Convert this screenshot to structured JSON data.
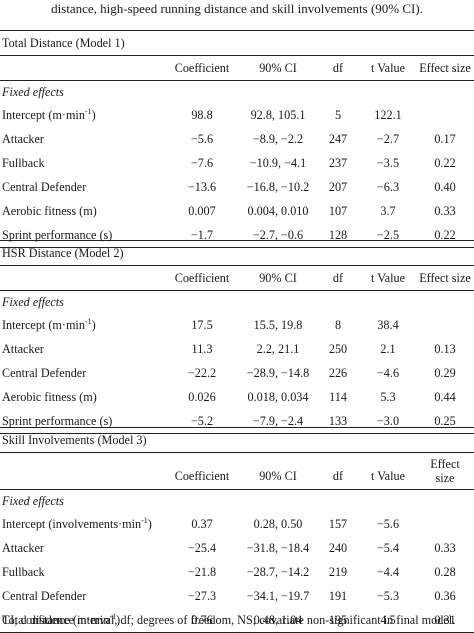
{
  "caption_tail": "distance, high-speed running distance and skill involvements (90% CI).",
  "headers": {
    "coefficient": "Coefficient",
    "ci": "90% CI",
    "df": "df",
    "t": "t Value",
    "effect_size": "Effect size",
    "effect_line1": "Effect",
    "effect_line2": "size"
  },
  "fixed_effects_label": "Fixed effects",
  "models": [
    {
      "title": "Total Distance (Model 1)",
      "rows": [
        {
          "label": "Intercept (m·min",
          "sup": "-1",
          "label_end": ")",
          "coef": "98.8",
          "ci": "92.8, 105.1",
          "df": "5",
          "t": "122.1",
          "es": ""
        },
        {
          "label": "Attacker",
          "coef": "−5.6",
          "ci": "−8.9, −2.2",
          "df": "247",
          "t": "−2.7",
          "es": "0.17"
        },
        {
          "label": "Fullback",
          "coef": "−7.6",
          "ci": "−10.9, −4.1",
          "df": "237",
          "t": "−3.5",
          "es": "0.22"
        },
        {
          "label": "Central Defender",
          "coef": "−13.6",
          "ci": "−16.8, −10.2",
          "df": "207",
          "t": "−6.3",
          "es": "0.40"
        },
        {
          "label": "Aerobic fitness (m)",
          "coef": "0.007",
          "ci": "0.004, 0.010",
          "df": "107",
          "t": "3.7",
          "es": "0.33"
        },
        {
          "label": "Sprint performance (s)",
          "coef": "−1.7",
          "ci": "−2.7, −0.6",
          "df": "128",
          "t": "−2.5",
          "es": "0.22"
        }
      ]
    },
    {
      "title": "HSR Distance (Model 2)",
      "rows": [
        {
          "label": "Intercept (m·min",
          "sup": "-1",
          "label_end": ")",
          "coef": "17.5",
          "ci": "15.5, 19.8",
          "df": "8",
          "t": "38.4",
          "es": ""
        },
        {
          "label": "Attacker",
          "coef": "11.3",
          "ci": "2.2, 21.1",
          "df": "250",
          "t": "2.1",
          "es": "0.13"
        },
        {
          "label": "Central Defender",
          "coef": "−22.2",
          "ci": "−28.9, −14.8",
          "df": "226",
          "t": "−4.6",
          "es": "0.29"
        },
        {
          "label": "Aerobic fitness (m)",
          "coef": "0.026",
          "ci": "0.018, 0.034",
          "df": "114",
          "t": "5.3",
          "es": "0.44"
        },
        {
          "label": "Sprint performance (s)",
          "coef": "−5.2",
          "ci": "−7.9, −2.4",
          "df": "133",
          "t": "−3.0",
          "es": "0.25"
        }
      ]
    },
    {
      "title": "Skill Involvements (Model 3)",
      "rows": [
        {
          "label": "Intercept (involvements·min",
          "sup": "-1",
          "label_end": ")",
          "coef": "0.37",
          "ci": "0.28, 0.50",
          "df": "157",
          "t": "−5.6",
          "es": ""
        },
        {
          "label": "Attacker",
          "coef": "−25.4",
          "ci": "−31.8, −18.4",
          "df": "240",
          "t": "−5.4",
          "es": "0.33"
        },
        {
          "label": "Fullback",
          "coef": "−21.8",
          "ci": "−28.7, −14.2",
          "df": "219",
          "t": "−4.4",
          "es": "0.28"
        },
        {
          "label": "Central Defender",
          "coef": "−27.3",
          "ci": "−34.1, −19.7",
          "df": "191",
          "t": "−5.3",
          "es": "0.36"
        },
        {
          "label": "Total distance (m·min",
          "sup": "-1",
          "label_end": ")",
          "coef": "0.76",
          "ci": "0.48, 1.04",
          "df": "195",
          "t": "4.5",
          "es": "0.31"
        }
      ]
    }
  ],
  "footnote": "CI; confidence interval, df; degrees of freedom, NS; covariate non-significant in final model."
}
